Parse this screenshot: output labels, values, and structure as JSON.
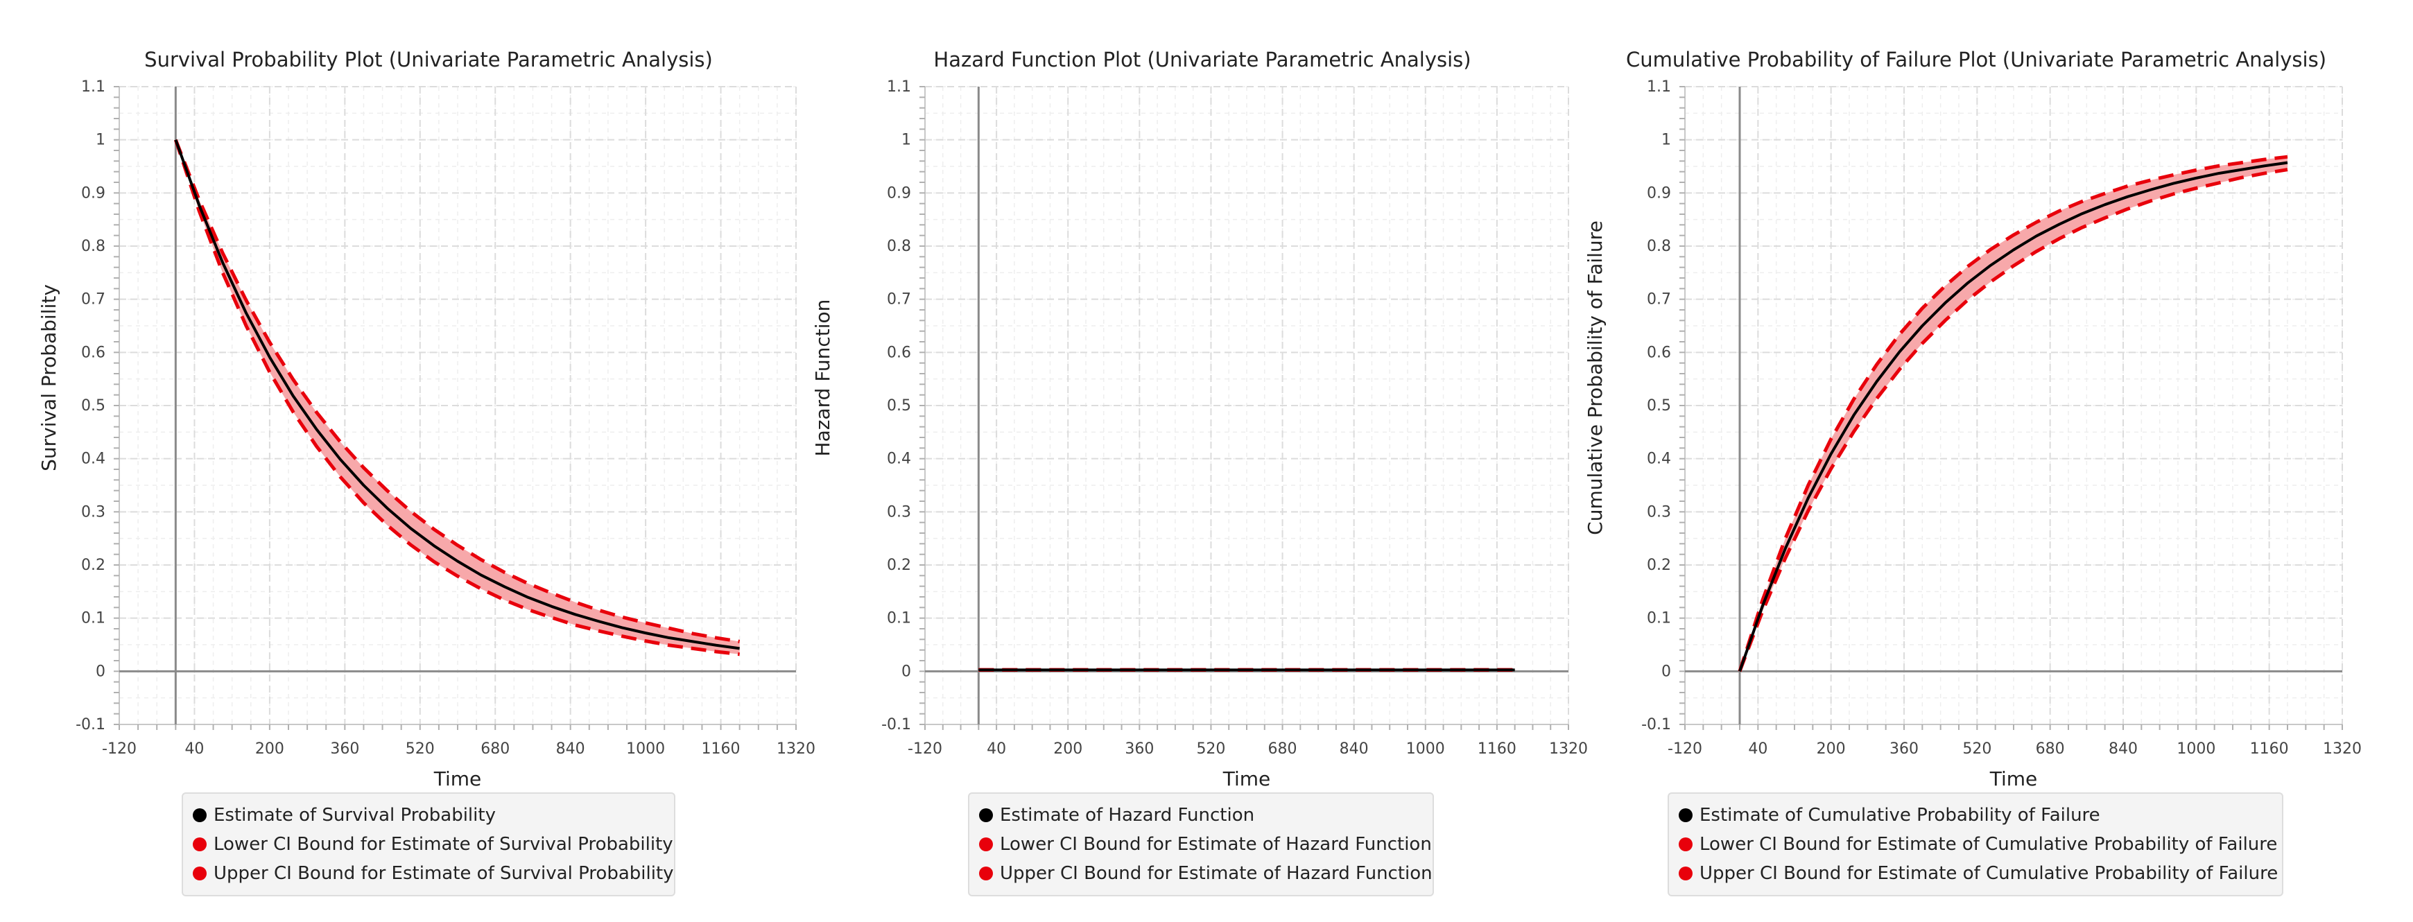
{
  "theme": {
    "grid": "#dcdcdc",
    "axis": "#8a8a8a",
    "estimate_color": "#000000",
    "ci_color": "#e8000b",
    "band_color": "#f7a8aa"
  },
  "chart_data": [
    {
      "type": "line",
      "title": "Survival Probability Plot (Univariate Parametric Analysis)",
      "xlabel": "Time",
      "ylabel": "Survival Probability",
      "xlim": [
        -120,
        1320
      ],
      "ylim": [
        -0.1,
        1.1
      ],
      "x_ticks": [
        "-120",
        "40",
        "200",
        "360",
        "520",
        "680",
        "840",
        "1000",
        "1160",
        "1320"
      ],
      "y_ticks": [
        "-0.1",
        "0",
        "0.1",
        "0.2",
        "0.3",
        "0.4",
        "0.5",
        "0.6",
        "0.7",
        "0.8",
        "0.9",
        "1",
        "1.1"
      ],
      "grid": true,
      "legend_position": "bottom",
      "series": [
        {
          "name": "Estimate of Survival Probability",
          "style": "solid",
          "color": "#000000",
          "x": [
            0,
            50,
            100,
            150,
            200,
            250,
            300,
            350,
            400,
            450,
            500,
            550,
            600,
            650,
            700,
            750,
            800,
            850,
            900,
            950,
            1000,
            1050,
            1100,
            1150,
            1200
          ],
          "y": [
            1.0,
            0.877,
            0.769,
            0.674,
            0.591,
            0.518,
            0.455,
            0.399,
            0.35,
            0.307,
            0.269,
            0.236,
            0.207,
            0.181,
            0.159,
            0.139,
            0.122,
            0.107,
            0.094,
            0.082,
            0.072,
            0.063,
            0.056,
            0.049,
            0.043
          ]
        },
        {
          "name": "Lower CI Bound for Estimate of Survival Probability",
          "style": "dashed",
          "color": "#e8000b",
          "x": [
            0,
            50,
            100,
            150,
            200,
            250,
            300,
            350,
            400,
            450,
            500,
            550,
            600,
            650,
            700,
            750,
            800,
            850,
            900,
            950,
            1000,
            1050,
            1100,
            1150,
            1200
          ],
          "y": [
            1.0,
            0.866,
            0.75,
            0.65,
            0.563,
            0.488,
            0.423,
            0.366,
            0.317,
            0.275,
            0.238,
            0.206,
            0.179,
            0.155,
            0.134,
            0.116,
            0.101,
            0.087,
            0.076,
            0.066,
            0.057,
            0.049,
            0.043,
            0.037,
            0.032
          ]
        },
        {
          "name": "Upper CI Bound for Estimate of Survival Probability",
          "style": "dashed",
          "color": "#e8000b",
          "x": [
            0,
            50,
            100,
            150,
            200,
            250,
            300,
            350,
            400,
            450,
            500,
            550,
            600,
            650,
            700,
            750,
            800,
            850,
            900,
            950,
            1000,
            1050,
            1100,
            1150,
            1200
          ],
          "y": [
            1.0,
            0.887,
            0.787,
            0.698,
            0.619,
            0.549,
            0.487,
            0.432,
            0.383,
            0.34,
            0.301,
            0.267,
            0.237,
            0.21,
            0.186,
            0.165,
            0.147,
            0.13,
            0.115,
            0.102,
            0.091,
            0.081,
            0.071,
            0.063,
            0.056
          ]
        }
      ]
    },
    {
      "type": "line",
      "title": "Hazard Function Plot (Univariate Parametric Analysis)",
      "xlabel": "Time",
      "ylabel": "Hazard Function",
      "xlim": [
        -120,
        1320
      ],
      "ylim": [
        -0.1,
        1.1
      ],
      "x_ticks": [
        "-120",
        "40",
        "200",
        "360",
        "520",
        "680",
        "840",
        "1000",
        "1160",
        "1320"
      ],
      "y_ticks": [
        "-0.1",
        "0",
        "0.1",
        "0.2",
        "0.3",
        "0.4",
        "0.5",
        "0.6",
        "0.7",
        "0.8",
        "0.9",
        "1",
        "1.1"
      ],
      "grid": true,
      "legend_position": "bottom",
      "series": [
        {
          "name": "Estimate of Hazard Function",
          "style": "solid",
          "color": "#000000",
          "x": [
            0,
            300,
            600,
            900,
            1200
          ],
          "y": [
            0.0026,
            0.0026,
            0.0026,
            0.0026,
            0.0026
          ]
        },
        {
          "name": "Lower CI Bound for Estimate of Hazard Function",
          "style": "dashed",
          "color": "#e8000b",
          "x": [
            0,
            300,
            600,
            900,
            1200
          ],
          "y": [
            0.0024,
            0.0024,
            0.0024,
            0.0024,
            0.0024
          ]
        },
        {
          "name": "Upper CI Bound for Estimate of Hazard Function",
          "style": "dashed",
          "color": "#e8000b",
          "x": [
            0,
            300,
            600,
            900,
            1200
          ],
          "y": [
            0.0029,
            0.0029,
            0.0029,
            0.0029,
            0.0029
          ]
        }
      ]
    },
    {
      "type": "line",
      "title": "Cumulative Probability of Failure Plot (Univariate Parametric Analysis)",
      "xlabel": "Time",
      "ylabel": "Cumulative Probability of Failure",
      "xlim": [
        -120,
        1320
      ],
      "ylim": [
        -0.1,
        1.1
      ],
      "x_ticks": [
        "-120",
        "40",
        "200",
        "360",
        "520",
        "680",
        "840",
        "1000",
        "1160",
        "1320"
      ],
      "y_ticks": [
        "-0.1",
        "0",
        "0.1",
        "0.2",
        "0.3",
        "0.4",
        "0.5",
        "0.6",
        "0.7",
        "0.8",
        "0.9",
        "1",
        "1.1"
      ],
      "grid": true,
      "legend_position": "bottom",
      "series": [
        {
          "name": "Estimate of Cumulative Probability of Failure",
          "style": "solid",
          "color": "#000000",
          "x": [
            0,
            50,
            100,
            150,
            200,
            250,
            300,
            350,
            400,
            450,
            500,
            550,
            600,
            650,
            700,
            750,
            800,
            850,
            900,
            950,
            1000,
            1050,
            1100,
            1150,
            1200
          ],
          "y": [
            0.0,
            0.123,
            0.231,
            0.326,
            0.409,
            0.482,
            0.545,
            0.601,
            0.65,
            0.693,
            0.731,
            0.764,
            0.793,
            0.819,
            0.841,
            0.861,
            0.878,
            0.893,
            0.906,
            0.918,
            0.928,
            0.937,
            0.944,
            0.951,
            0.957
          ]
        },
        {
          "name": "Lower CI Bound for Estimate of Cumulative Probability of Failure",
          "style": "dashed",
          "color": "#e8000b",
          "x": [
            0,
            50,
            100,
            150,
            200,
            250,
            300,
            350,
            400,
            450,
            500,
            550,
            600,
            650,
            700,
            750,
            800,
            850,
            900,
            950,
            1000,
            1050,
            1100,
            1150,
            1200
          ],
          "y": [
            0.0,
            0.113,
            0.213,
            0.302,
            0.381,
            0.451,
            0.513,
            0.568,
            0.617,
            0.66,
            0.699,
            0.733,
            0.763,
            0.79,
            0.814,
            0.835,
            0.853,
            0.87,
            0.885,
            0.898,
            0.909,
            0.919,
            0.929,
            0.937,
            0.944
          ]
        },
        {
          "name": "Upper CI Bound for Estimate of Cumulative Probability of Failure",
          "style": "dashed",
          "color": "#e8000b",
          "x": [
            0,
            50,
            100,
            150,
            200,
            250,
            300,
            350,
            400,
            450,
            500,
            550,
            600,
            650,
            700,
            750,
            800,
            850,
            900,
            950,
            1000,
            1050,
            1100,
            1150,
            1200
          ],
          "y": [
            0.0,
            0.134,
            0.25,
            0.35,
            0.437,
            0.512,
            0.577,
            0.634,
            0.683,
            0.725,
            0.762,
            0.794,
            0.821,
            0.845,
            0.866,
            0.884,
            0.899,
            0.913,
            0.924,
            0.934,
            0.943,
            0.951,
            0.957,
            0.963,
            0.968
          ]
        }
      ]
    }
  ]
}
